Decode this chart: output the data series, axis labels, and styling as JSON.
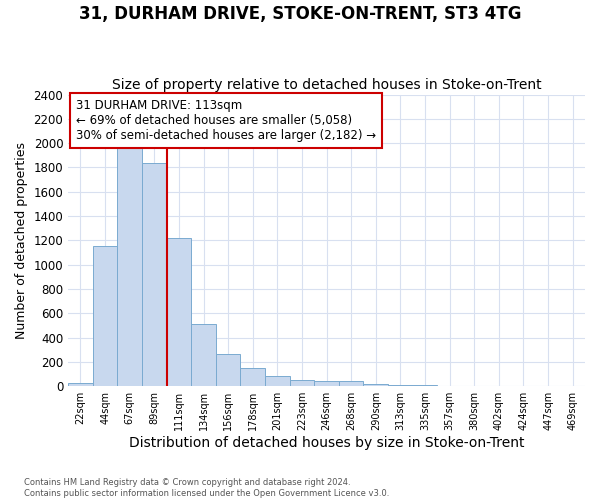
{
  "title": "31, DURHAM DRIVE, STOKE-ON-TRENT, ST3 4TG",
  "subtitle": "Size of property relative to detached houses in Stoke-on-Trent",
  "xlabel": "Distribution of detached houses by size in Stoke-on-Trent",
  "ylabel": "Number of detached properties",
  "categories": [
    "22sqm",
    "44sqm",
    "67sqm",
    "89sqm",
    "111sqm",
    "134sqm",
    "156sqm",
    "178sqm",
    "201sqm",
    "223sqm",
    "246sqm",
    "268sqm",
    "290sqm",
    "313sqm",
    "335sqm",
    "357sqm",
    "380sqm",
    "402sqm",
    "424sqm",
    "447sqm",
    "469sqm"
  ],
  "values": [
    28,
    1150,
    1960,
    1840,
    1220,
    510,
    265,
    150,
    80,
    48,
    42,
    40,
    18,
    12,
    8,
    5,
    4,
    4,
    4,
    4,
    4
  ],
  "bar_color": "#c8d8ee",
  "bar_edge_color": "#7aaad0",
  "property_bin_index": 4,
  "highlight_label": "31 DURHAM DRIVE: 113sqm",
  "annotation_line1": "← 69% of detached houses are smaller (5,058)",
  "annotation_line2": "30% of semi-detached houses are larger (2,182) →",
  "annotation_box_edgecolor": "#cc0000",
  "vline_color": "#cc0000",
  "ylim": [
    0,
    2400
  ],
  "yticks": [
    0,
    200,
    400,
    600,
    800,
    1000,
    1200,
    1400,
    1600,
    1800,
    2000,
    2200,
    2400
  ],
  "footer_line1": "Contains HM Land Registry data © Crown copyright and database right 2024.",
  "footer_line2": "Contains public sector information licensed under the Open Government Licence v3.0.",
  "bg_color": "#ffffff",
  "grid_color": "#d8e0f0",
  "title_fontsize": 12,
  "subtitle_fontsize": 10,
  "xlabel_fontsize": 10,
  "ylabel_fontsize": 9,
  "ann_fontsize": 8.5
}
